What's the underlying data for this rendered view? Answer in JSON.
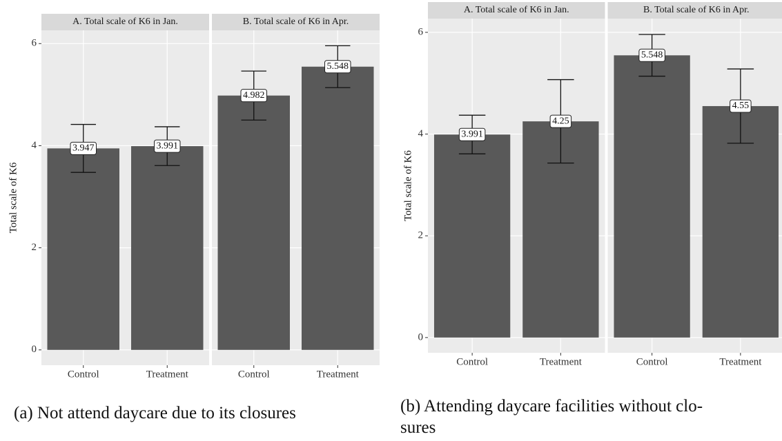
{
  "chart_data": [
    {
      "type": "bar",
      "ylabel": "Total scale of K6",
      "caption": [
        "(a) Not attend daycare due to its closures"
      ],
      "ylim": [
        -0.3,
        6.26
      ],
      "yticks": [
        0,
        2,
        4,
        6
      ],
      "grid": true,
      "color": "#595959",
      "panels": [
        {
          "title": "A. Total scale of K6 in Jan.",
          "categories": [
            "Control",
            "Treatment"
          ],
          "values": [
            3.947,
            3.991
          ],
          "errors": [
            0.47,
            0.38
          ]
        },
        {
          "title": "B. Total scale of K6 in Apr.",
          "categories": [
            "Control",
            "Treatment"
          ],
          "values": [
            4.982,
            5.548
          ],
          "errors": [
            0.48,
            0.41
          ]
        }
      ]
    },
    {
      "type": "bar",
      "ylabel": "Total scale of K6",
      "caption": [
        "(b) Attending daycare facilities without clo-",
        "sures"
      ],
      "ylim": [
        -0.3,
        6.27
      ],
      "yticks": [
        0,
        2,
        4,
        6
      ],
      "grid": true,
      "color": "#595959",
      "panels": [
        {
          "title": "A. Total scale of K6 in Jan.",
          "categories": [
            "Control",
            "Treatment"
          ],
          "values": [
            3.991,
            4.25
          ],
          "errors": [
            0.38,
            0.82
          ]
        },
        {
          "title": "B. Total scale of K6 in Apr.",
          "categories": [
            "Control",
            "Treatment"
          ],
          "values": [
            5.548,
            4.55
          ],
          "errors": [
            0.41,
            0.73
          ]
        }
      ]
    }
  ]
}
